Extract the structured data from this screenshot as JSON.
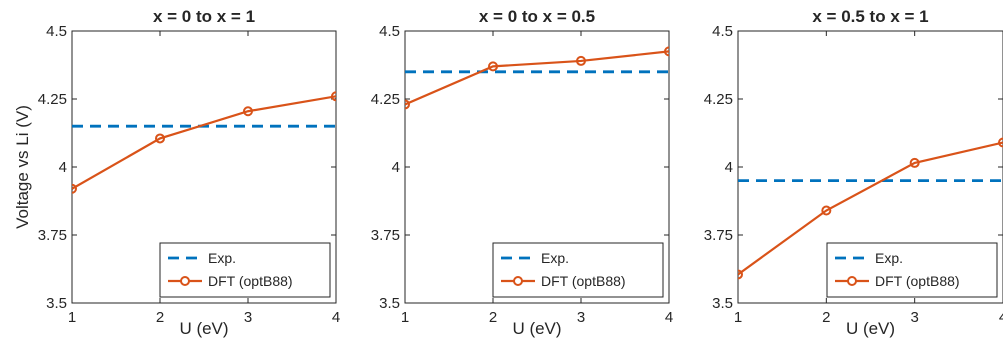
{
  "colors": {
    "experiment": "#0072bd",
    "dft": "#d95319",
    "axis": "#262626"
  },
  "chart_data": [
    {
      "type": "line",
      "title": "x = 0 to x = 1",
      "xlabel": "U (eV)",
      "ylabel": "Voltage vs Li (V)",
      "x_ticks": [
        "1",
        "2",
        "3",
        "4"
      ],
      "y_ticks": [
        "3.5",
        "3.75",
        "4",
        "4.25",
        "4.5"
      ],
      "xlim": [
        1,
        4
      ],
      "ylim": [
        3.5,
        4.5
      ],
      "grid": false,
      "legend_position": "bottom-right",
      "series": [
        {
          "name": "Exp.",
          "style": "dashed",
          "x": [
            1,
            4
          ],
          "y": [
            4.15,
            4.15
          ]
        },
        {
          "name": "DFT (optB88)",
          "style": "line-circle",
          "x": [
            1,
            2,
            3,
            4
          ],
          "y": [
            3.92,
            4.105,
            4.205,
            4.26
          ]
        }
      ]
    },
    {
      "type": "line",
      "title": "x = 0 to x = 0.5",
      "xlabel": "U (eV)",
      "ylabel": "",
      "x_ticks": [
        "1",
        "2",
        "3",
        "4"
      ],
      "y_ticks": [
        "3.5",
        "3.75",
        "4",
        "4.25",
        "4.5"
      ],
      "xlim": [
        1,
        4
      ],
      "ylim": [
        3.5,
        4.5
      ],
      "grid": false,
      "legend_position": "bottom-right",
      "series": [
        {
          "name": "Exp.",
          "style": "dashed",
          "x": [
            1,
            4
          ],
          "y": [
            4.35,
            4.35
          ]
        },
        {
          "name": "DFT (optB88)",
          "style": "line-circle",
          "x": [
            1,
            2,
            3,
            4
          ],
          "y": [
            4.23,
            4.37,
            4.39,
            4.425
          ]
        }
      ]
    },
    {
      "type": "line",
      "title": "x = 0.5 to x = 1",
      "xlabel": "U (eV)",
      "ylabel": "",
      "x_ticks": [
        "1",
        "2",
        "3",
        "4"
      ],
      "y_ticks": [
        "3.5",
        "3.75",
        "4",
        "4.25",
        "4.5"
      ],
      "xlim": [
        1,
        4
      ],
      "ylim": [
        3.5,
        4.5
      ],
      "grid": false,
      "legend_position": "bottom-right",
      "series": [
        {
          "name": "Exp.",
          "style": "dashed",
          "x": [
            1,
            4
          ],
          "y": [
            3.95,
            3.95
          ]
        },
        {
          "name": "DFT (optB88)",
          "style": "line-circle",
          "x": [
            1,
            2,
            3,
            4
          ],
          "y": [
            3.605,
            3.84,
            4.015,
            4.09
          ]
        }
      ]
    }
  ]
}
